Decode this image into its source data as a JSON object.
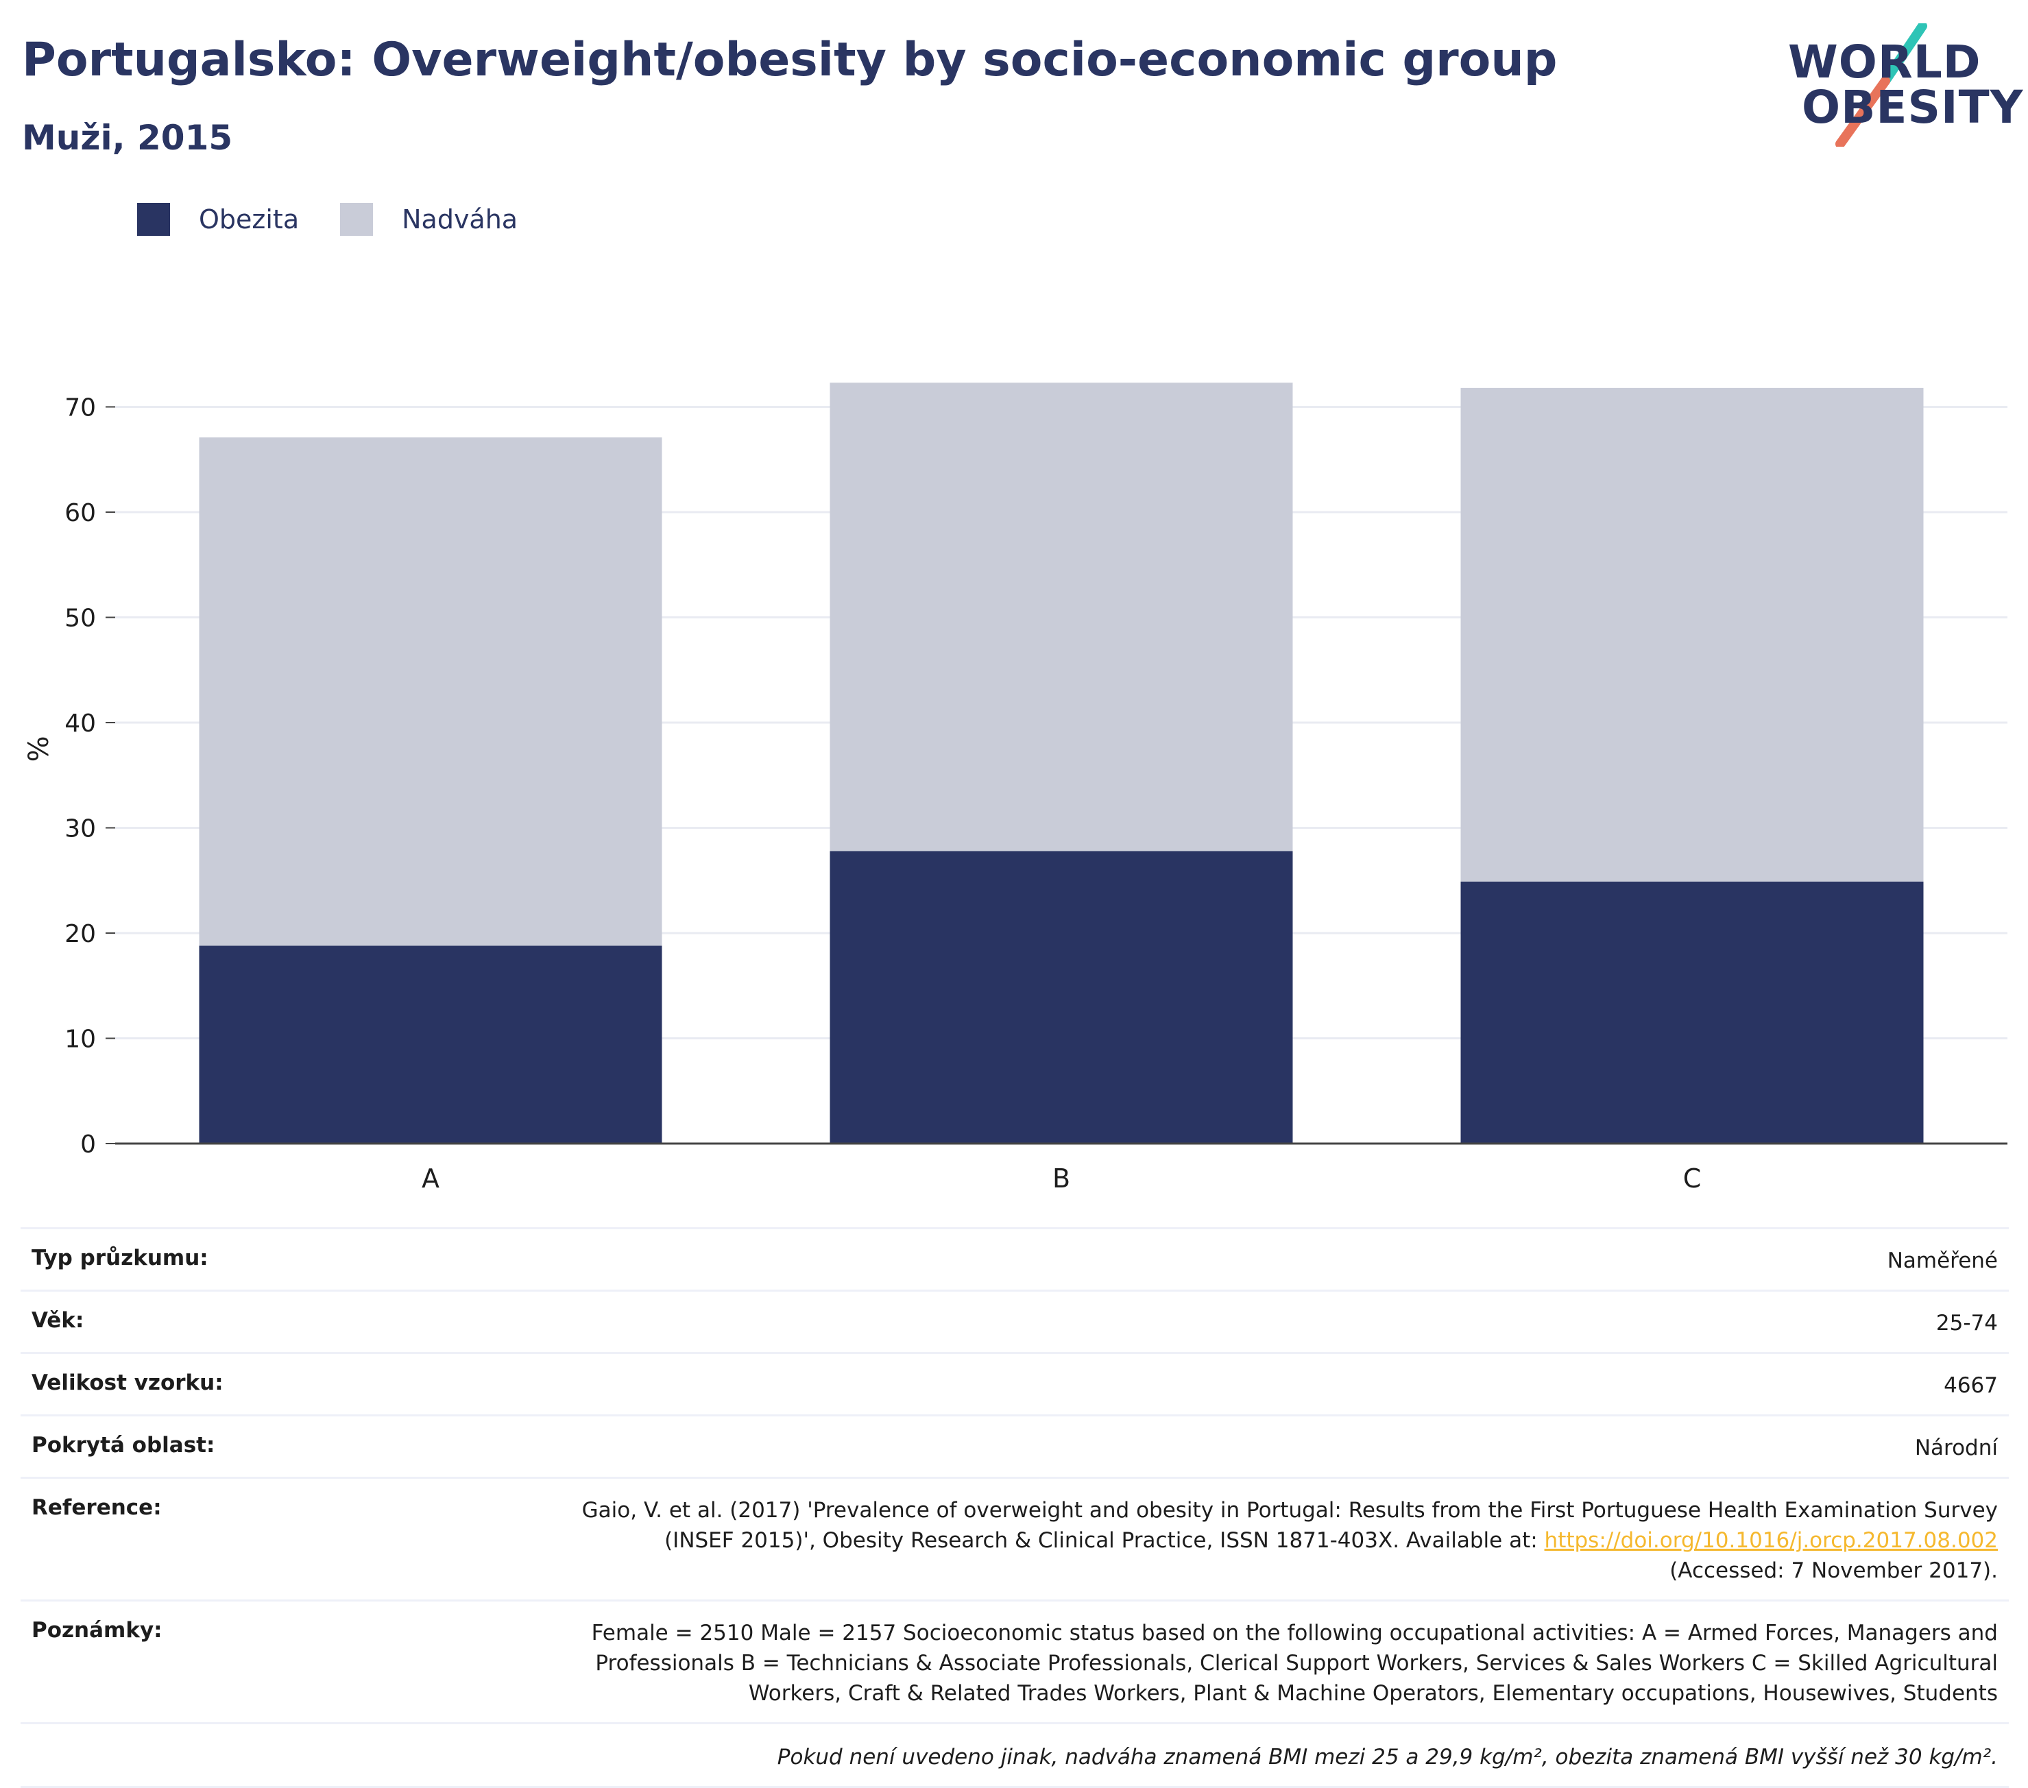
{
  "header": {
    "title": "Portugalsko: Overweight/obesity by socio-economic group",
    "subtitle": "Muži, 2015"
  },
  "logo": {
    "line1": "WORLD",
    "line2": "OBESITY"
  },
  "legend": [
    {
      "label": "Obezita",
      "color": "#293462"
    },
    {
      "label": "Nadváha",
      "color": "#c9ccd8"
    }
  ],
  "chart_data": {
    "type": "bar",
    "stacked": true,
    "categories": [
      "A",
      "B",
      "C"
    ],
    "series": [
      {
        "name": "Obezita",
        "color": "#293462",
        "values": [
          18.8,
          27.8,
          24.9
        ]
      },
      {
        "name": "Nadváha",
        "color": "#c9ccd8",
        "values": [
          48.3,
          44.5,
          46.9
        ]
      }
    ],
    "ylabel": "%",
    "ylim": [
      0,
      75
    ],
    "yticks": [
      0,
      10,
      20,
      30,
      40,
      50,
      60,
      70
    ],
    "grid": true,
    "legend_position": "top-left"
  },
  "meta": {
    "survey_type_label": "Typ průzkumu:",
    "survey_type_value": "Naměřené",
    "age_label": "Věk:",
    "age_value": "25-74",
    "sample_label": "Velikost vzorku:",
    "sample_value": "4667",
    "area_label": "Pokrytá oblast:",
    "area_value": "Národní",
    "reference_label": "Reference:",
    "reference_text": "Gaio, V. et al. (2017) 'Prevalence of overweight and obesity in Portugal: Results from the First Portuguese Health Examination Survey (INSEF 2015)', Obesity Research & Clinical Practice, ISSN 1871-403X. Available at:",
    "reference_link": "https://doi.org/10.1016/j.orcp.2017.08.002",
    "reference_accessed": "(Accessed: 7 November 2017).",
    "notes_label": "Poznámky:",
    "notes_value": "Female = 2510 Male = 2157 Socioeconomic status based on the following occupational activities: A = Armed Forces, Managers and Professionals B = Technicians & Associate Professionals, Clerical Support Workers, Services & Sales Workers C = Skilled Agricultural Workers, Craft & Related Trades Workers, Plant & Machine Operators, Elementary occupations, Housewives, Students",
    "footnote": "Pokud není uvedeno jinak, nadváha znamená BMI mezi 25 a 29,9 kg/m², obezita znamená BMI vyšší než 30 kg/m²."
  },
  "colors": {
    "brand_navy": "#293462",
    "brand_teal": "#2ec4b6",
    "brand_coral": "#e8735a",
    "link": "#f5b82e"
  }
}
